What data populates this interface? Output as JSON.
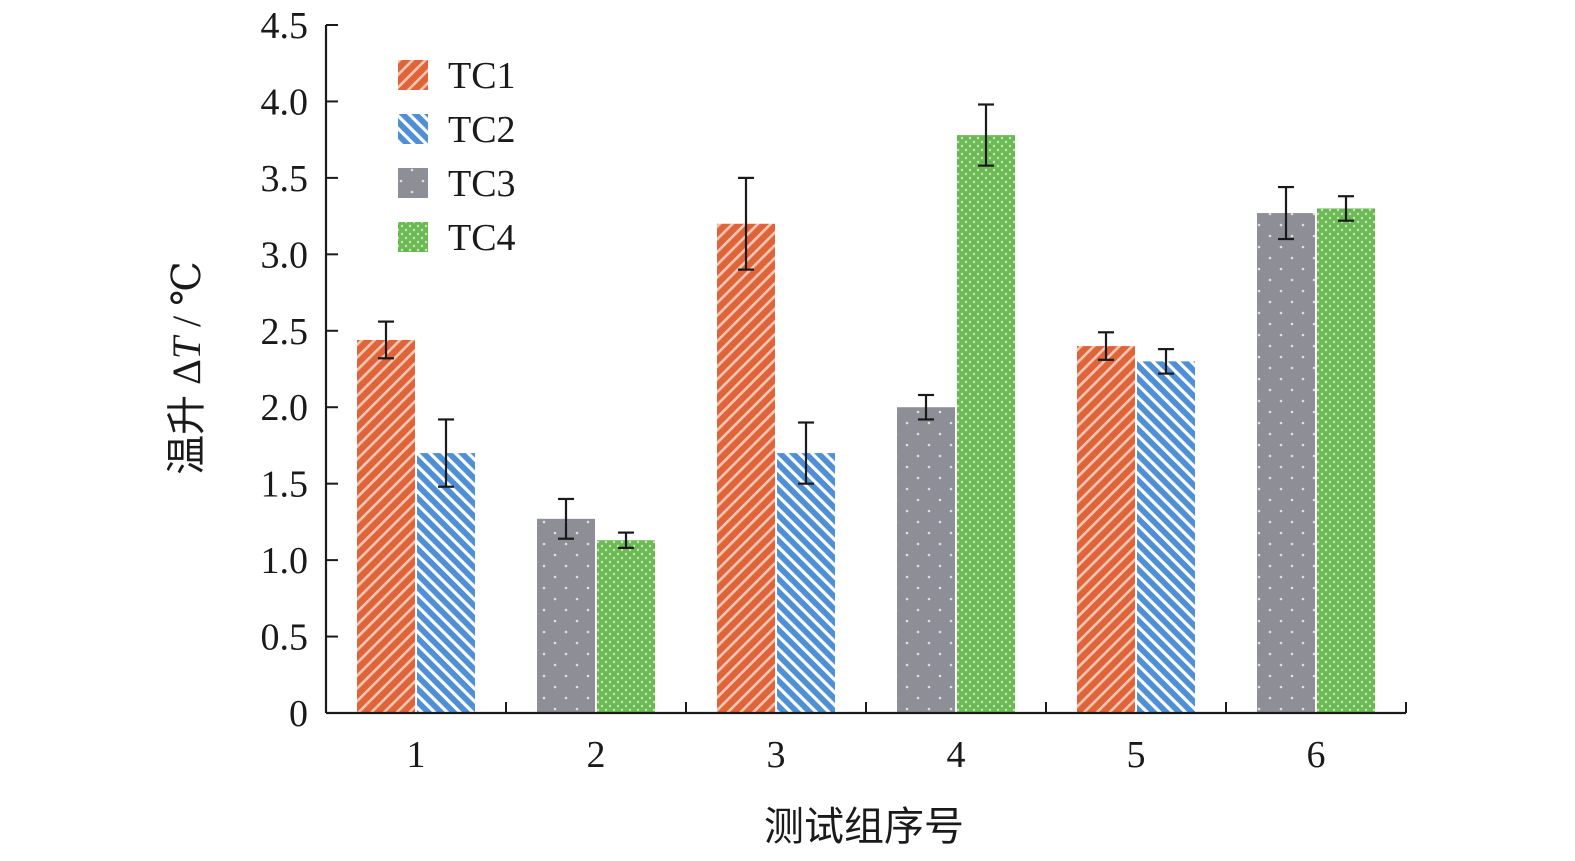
{
  "chart_data": {
    "type": "bar",
    "categories": [
      "1",
      "2",
      "3",
      "4",
      "5",
      "6"
    ],
    "xlabel": "测试组序号",
    "ylabel_prefix": "温升 Δ",
    "ylabel_var": "T",
    "ylabel_suffix": " / ℃",
    "ylim": [
      0,
      4.5
    ],
    "yticks": [
      "0",
      "0.5",
      "1.0",
      "1.5",
      "2.0",
      "2.5",
      "3.0",
      "3.5",
      "4.0",
      "4.5"
    ],
    "legend_position": "top-left",
    "grid": false,
    "series_colors": {
      "TC1": "#e0643a",
      "TC2": "#4f8fd6",
      "TC3": "#8e8e96",
      "TC4": "#6dbb55"
    },
    "series": [
      {
        "name": "TC1",
        "values": [
          2.44,
          null,
          3.2,
          null,
          2.4,
          null
        ],
        "errors": [
          0.12,
          null,
          0.3,
          null,
          0.09,
          null
        ]
      },
      {
        "name": "TC2",
        "values": [
          1.7,
          null,
          1.7,
          null,
          2.3,
          null
        ],
        "errors": [
          0.22,
          null,
          0.2,
          null,
          0.08,
          null
        ]
      },
      {
        "name": "TC3",
        "values": [
          null,
          1.27,
          null,
          2.0,
          null,
          3.27
        ],
        "errors": [
          null,
          0.13,
          null,
          0.08,
          null,
          0.17
        ]
      },
      {
        "name": "TC4",
        "values": [
          null,
          1.13,
          null,
          3.78,
          null,
          3.3
        ],
        "errors": [
          null,
          0.05,
          null,
          0.2,
          null,
          0.08
        ]
      }
    ],
    "groups": [
      [
        "TC1",
        "TC2"
      ],
      [
        "TC3",
        "TC4"
      ],
      [
        "TC1",
        "TC2"
      ],
      [
        "TC3",
        "TC4"
      ],
      [
        "TC1",
        "TC2"
      ],
      [
        "TC3",
        "TC4"
      ]
    ]
  }
}
